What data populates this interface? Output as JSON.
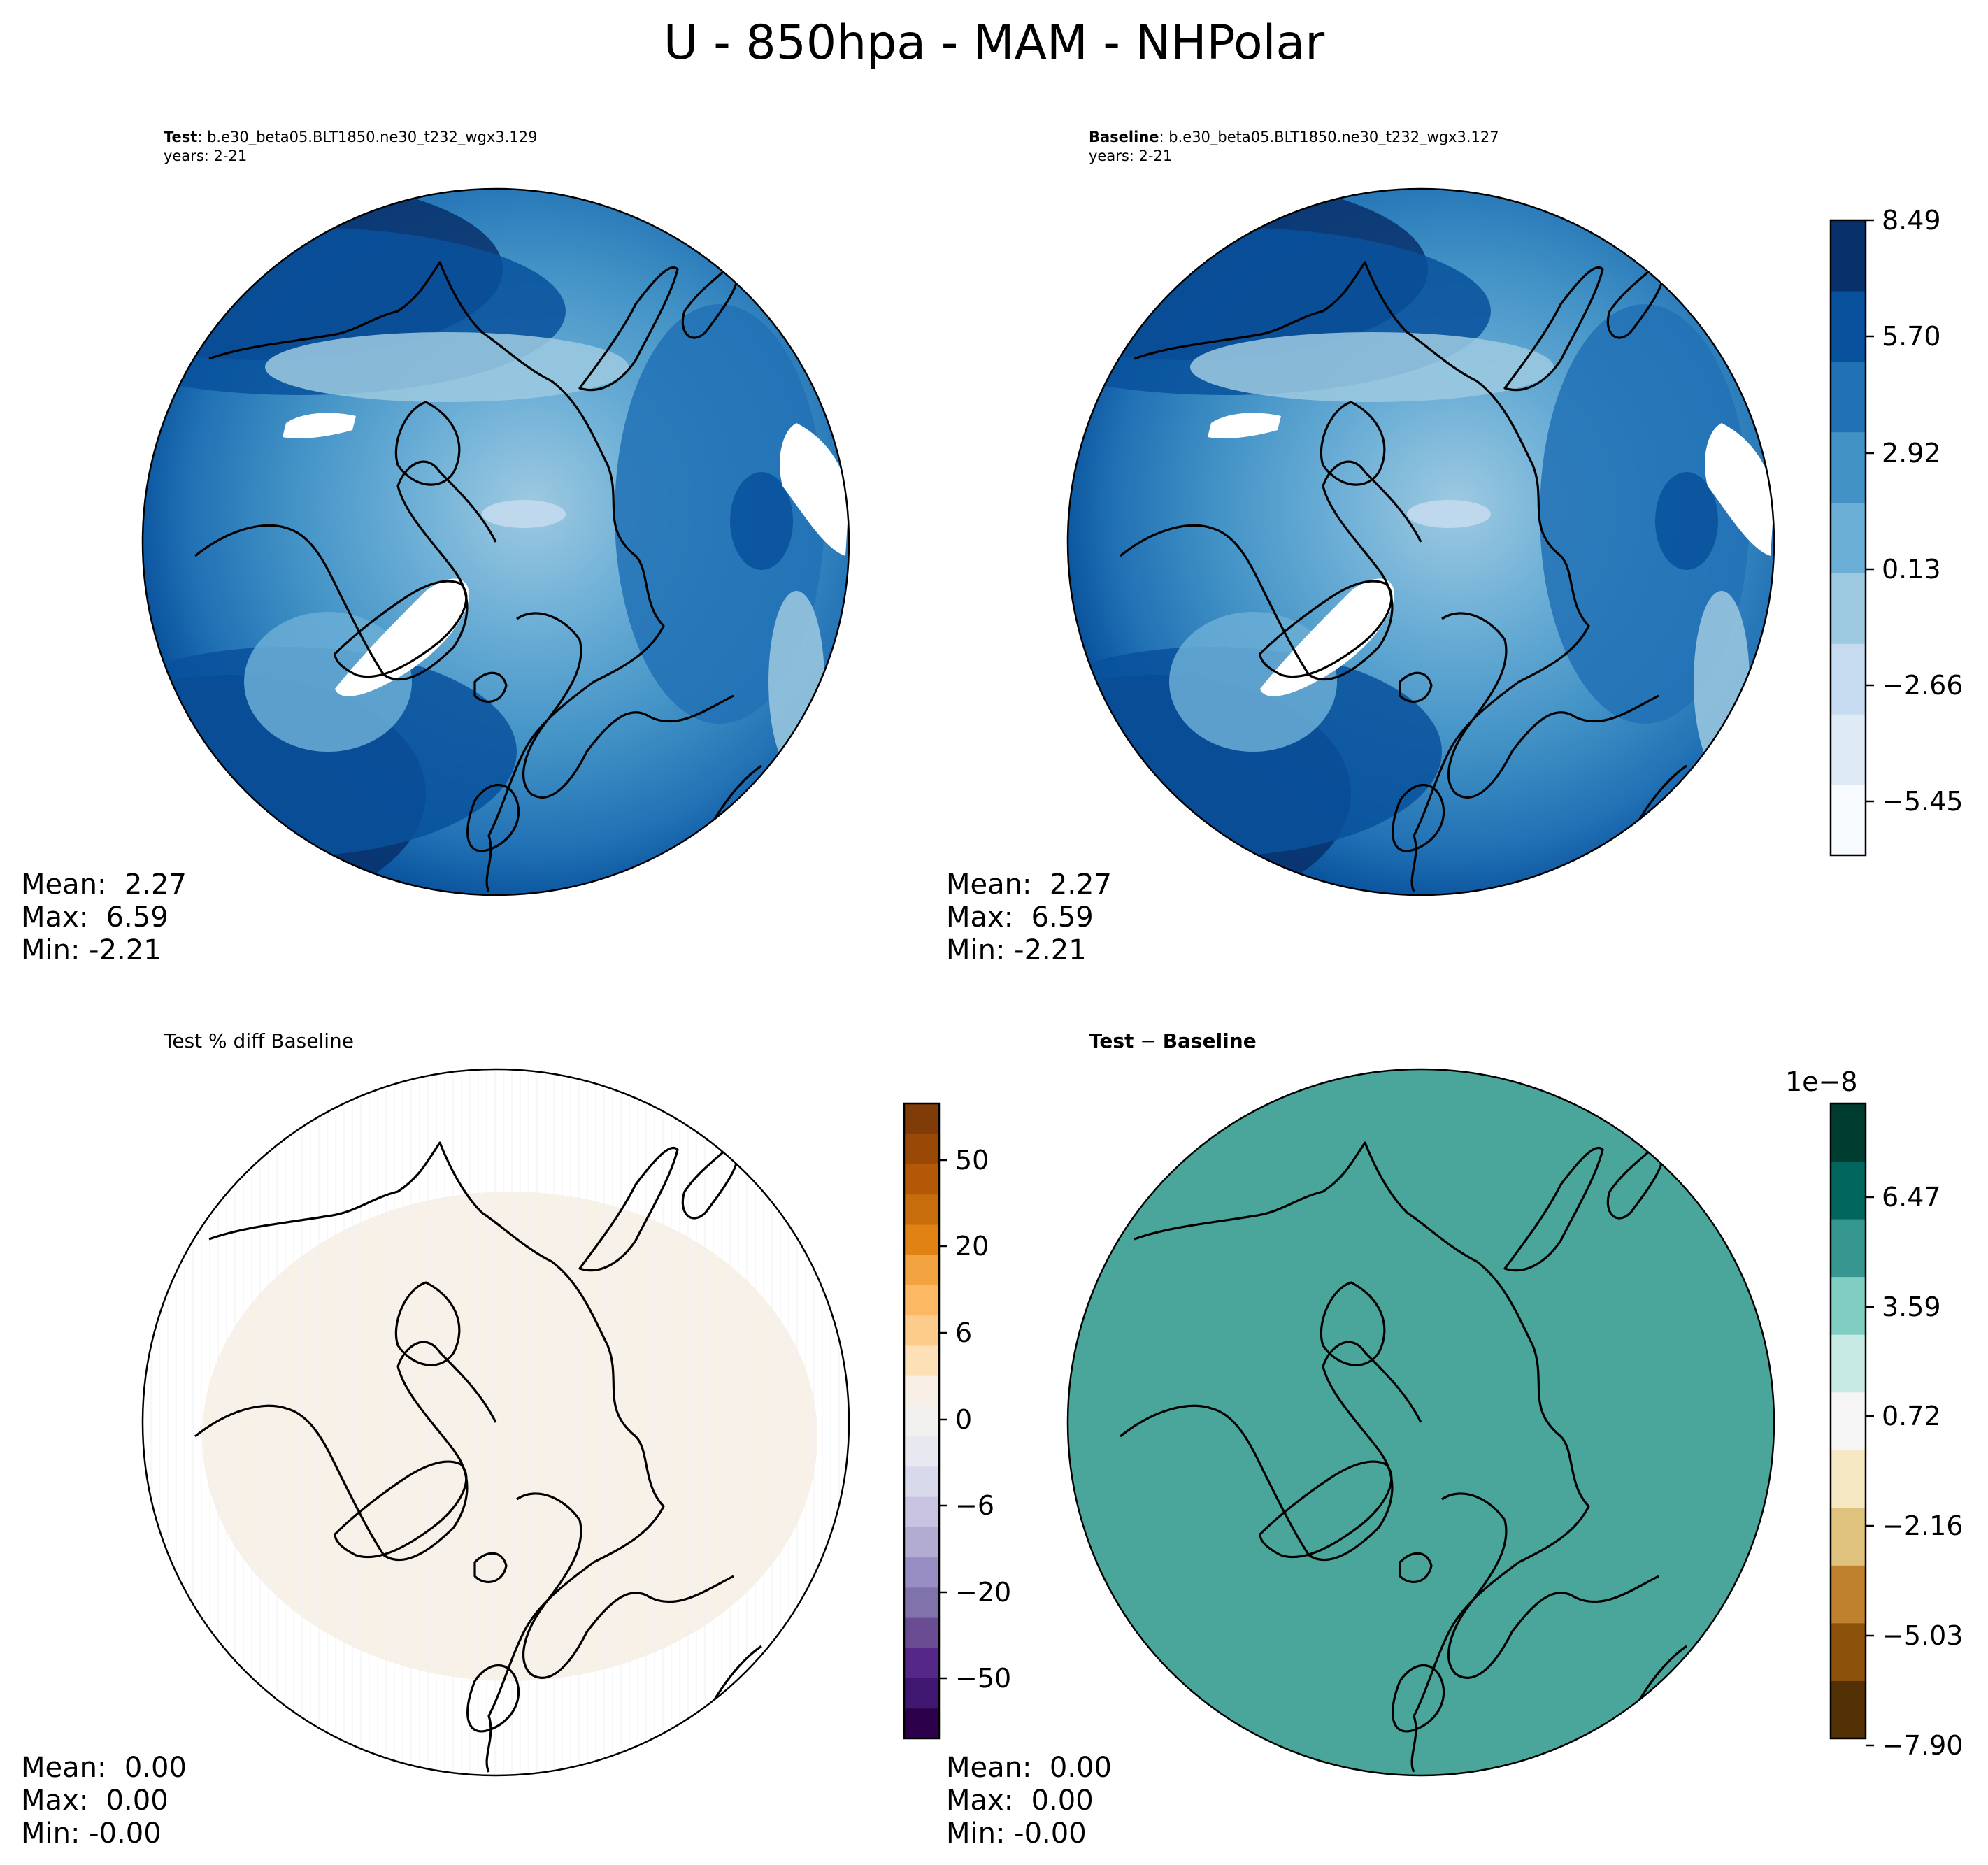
{
  "title": "U - 850hpa - MAM - NHPolar",
  "panels": {
    "test": {
      "name": "Test",
      "case": ": b.e30_beta05.BLT1850.ne30_t232_wgx3.129",
      "years": "years: 2-21",
      "mean": "Mean:  2.27",
      "max": "Max:  6.59",
      "min": "Min: -2.21"
    },
    "baseline": {
      "name": "Baseline",
      "case": ": b.e30_beta05.BLT1850.ne30_t232_wgx3.127",
      "years": "years: 2-21",
      "mean": "Mean:  2.27",
      "max": "Max:  6.59",
      "min": "Min: -2.21"
    },
    "pctdiff": {
      "title": "Test % diff Baseline",
      "mean": "Mean:  0.00",
      "max": "Max:  0.00",
      "min": "Min: -0.00"
    },
    "diff": {
      "title_a": "Test",
      "title_sep": " − ",
      "title_b": "Baseline",
      "mean": "Mean:  0.00",
      "max": "Max:  0.00",
      "min": "Min: -0.00"
    }
  },
  "colorbars": {
    "field": {
      "ticks": [
        "8.49",
        "5.70",
        "2.92",
        "0.13",
        "−2.66",
        "−5.45"
      ],
      "colors": [
        "#f7fbff",
        "#deebf7",
        "#c6dbef",
        "#9ecae1",
        "#6baed6",
        "#4292c6",
        "#2171b5",
        "#08519c",
        "#08306b"
      ]
    },
    "pctdiff": {
      "ticks": [
        "50",
        "20",
        "6",
        "0",
        "−6",
        "−20",
        "−50"
      ],
      "colors": [
        "#2d004b",
        "#3f1670",
        "#542788",
        "#6a4c93",
        "#8073ac",
        "#998ec3",
        "#b2abd2",
        "#c8c3e0",
        "#d8daeb",
        "#e8e8f1",
        "#f3f0f0",
        "#f7efe5",
        "#fee0b6",
        "#fdcc8a",
        "#fdb863",
        "#f1a340",
        "#e08214",
        "#c86d0c",
        "#b35806",
        "#9a4806",
        "#7f3b08"
      ]
    },
    "diff": {
      "exponent": "1e−8",
      "ticks": [
        "6.47",
        "3.59",
        "0.72",
        "−2.16",
        "−5.03",
        "−7.90"
      ],
      "colors": [
        "#543005",
        "#8c510a",
        "#bf812d",
        "#dfc27d",
        "#f6e8c3",
        "#f5f5f5",
        "#c7eae5",
        "#80cdc1",
        "#35978f",
        "#01665e",
        "#003c30"
      ]
    }
  },
  "map_colors": {
    "diff_fill": "#4aa69b",
    "pct_fill": "#f8f1e8",
    "land_mask": "#ffffff",
    "coast": "#000000"
  }
}
